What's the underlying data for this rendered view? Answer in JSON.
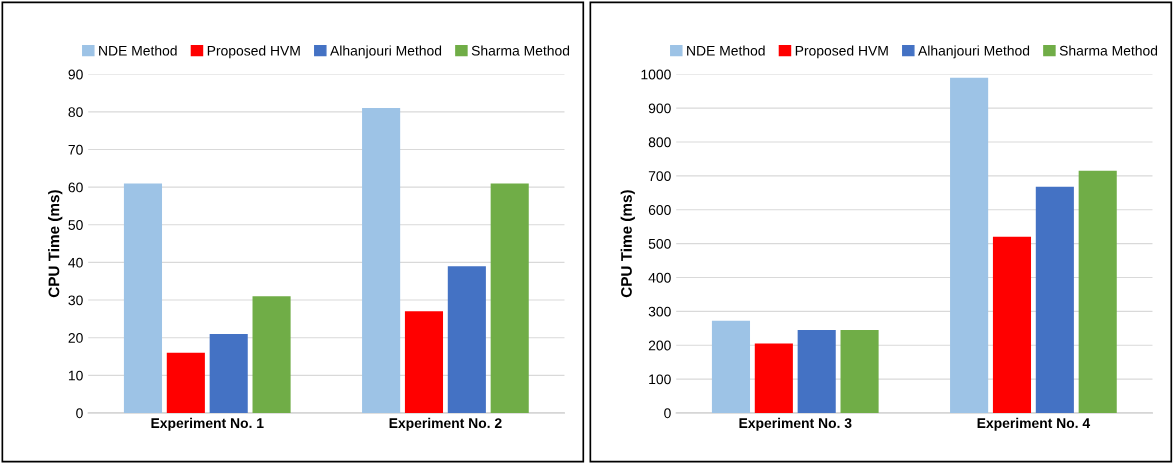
{
  "chart_data": [
    {
      "type": "bar",
      "ylabel": "CPU Time (ms)",
      "categories": [
        "Experiment No. 1",
        "Experiment No. 2"
      ],
      "ylim": [
        0,
        90
      ],
      "yticks": [
        0,
        10,
        20,
        30,
        40,
        50,
        60,
        70,
        80,
        90
      ],
      "grid": "y",
      "legend": "top",
      "series": [
        {
          "name": "NDE Method",
          "color": "#9dc3e6",
          "values": [
            61,
            81
          ]
        },
        {
          "name": "Proposed HVM",
          "color": "#ff0000",
          "values": [
            16,
            27
          ]
        },
        {
          "name": "Alhanjouri Method",
          "color": "#4472c4",
          "values": [
            21,
            39
          ]
        },
        {
          "name": "Sharma Method",
          "color": "#70ad47",
          "values": [
            31,
            61
          ]
        }
      ]
    },
    {
      "type": "bar",
      "ylabel": "CPU Time (ms)",
      "categories": [
        "Experiment No. 3",
        "Experiment No. 4"
      ],
      "ylim": [
        0,
        1000
      ],
      "yticks": [
        0,
        100,
        200,
        300,
        400,
        500,
        600,
        700,
        800,
        900,
        1000
      ],
      "grid": "y",
      "legend": "top",
      "series": [
        {
          "name": "NDE Method",
          "color": "#9dc3e6",
          "values": [
            272,
            990
          ]
        },
        {
          "name": "Proposed HVM",
          "color": "#ff0000",
          "values": [
            205,
            520
          ]
        },
        {
          "name": "Alhanjouri Method",
          "color": "#4472c4",
          "values": [
            245,
            668
          ]
        },
        {
          "name": "Sharma Method",
          "color": "#70ad47",
          "values": [
            245,
            715
          ]
        }
      ]
    }
  ]
}
